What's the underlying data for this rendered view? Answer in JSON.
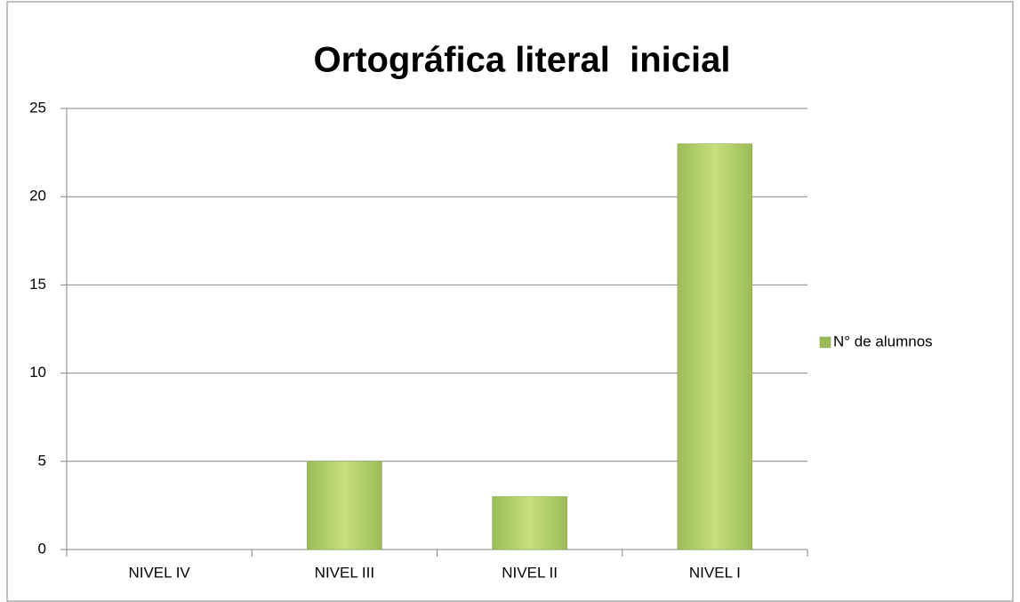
{
  "chart_data": {
    "type": "bar",
    "title": "Ortográfica literal  inicial",
    "categories": [
      "NIVEL IV",
      "NIVEL III",
      "NIVEL II",
      "NIVEL I"
    ],
    "series": [
      {
        "name": "N° de alumnos",
        "color": "#9bbb59",
        "values": [
          0,
          5,
          3,
          23
        ]
      }
    ],
    "ylim": [
      0,
      25
    ],
    "yticks": [
      0,
      5,
      10,
      15,
      20,
      25
    ],
    "grid": true,
    "legend": "right"
  }
}
